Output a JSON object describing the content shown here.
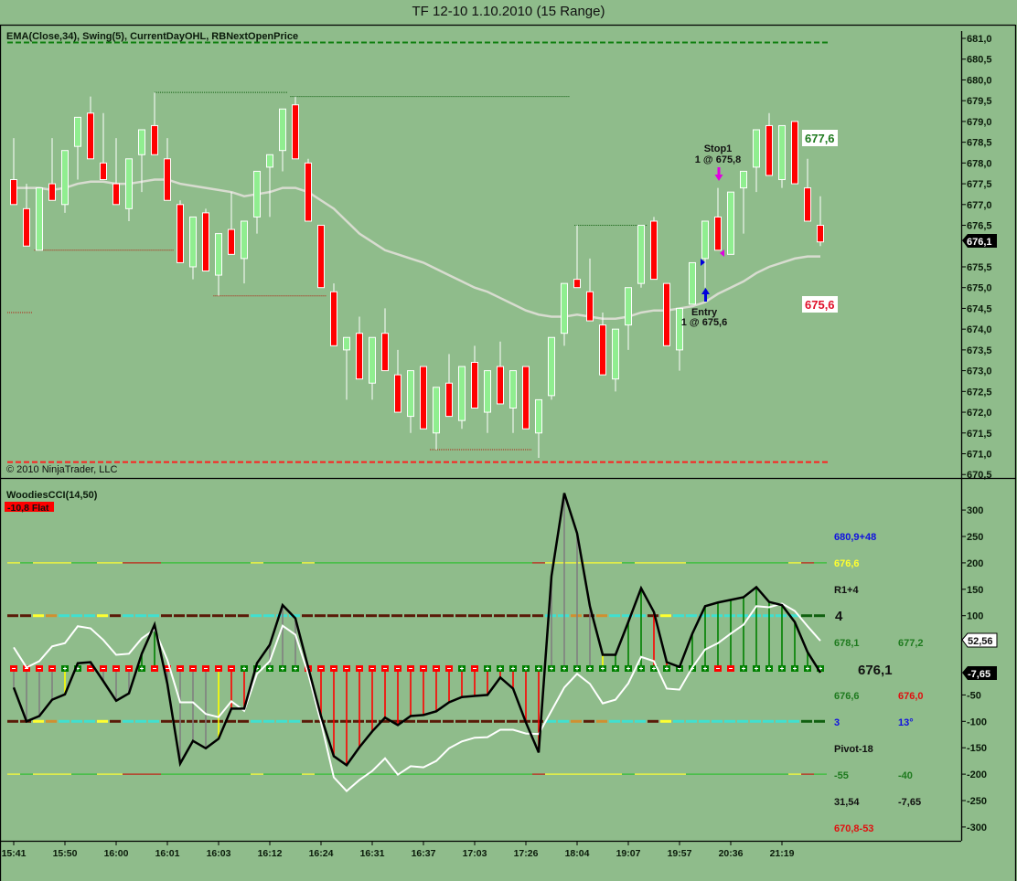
{
  "title": "TF 12-10  1.10.2010 (15 Range)",
  "upper_panel": {
    "indicators_label": "EMA(Close,34), Swing(5), CurrentDayOHL, RBNextOpenPrice",
    "copyright": "© 2010 NinjaTrader, LLC",
    "price_ticks": [
      "681,0",
      "680,5",
      "680,0",
      "679,5",
      "679,0",
      "678,5",
      "678,0",
      "677,5",
      "677,0",
      "676,5",
      "675,5",
      "675,0",
      "674,5",
      "674,0",
      "673,5",
      "673,0",
      "672,5",
      "672,0",
      "671,5",
      "671,0",
      "670,5"
    ],
    "price_tick_values": [
      681.0,
      680.5,
      680.0,
      679.5,
      679.0,
      678.5,
      678.0,
      677.5,
      677.0,
      676.5,
      675.5,
      675.0,
      674.5,
      674.0,
      673.5,
      673.0,
      672.5,
      672.0,
      671.5,
      671.0,
      670.5
    ],
    "current_price_label": "676,1",
    "current_price": 676.1,
    "day_high": 680.9,
    "day_low": 670.8,
    "target_label": "677,6",
    "target_price": 677.6,
    "entry_price_label": "675,6",
    "entry_price": 675.6,
    "stop_annotation": {
      "title": "Stop1",
      "detail": "1 @ 675,8"
    },
    "entry_annotation": {
      "title": "Entry",
      "detail": "1 @ 675,6"
    }
  },
  "lower_panel": {
    "indicator_label": "WoodiesCCI(14,50)",
    "status_badge": "-10,8 Flat",
    "cci_ticks": [
      "300",
      "250",
      "200",
      "150",
      "100",
      "-50",
      "-100",
      "-150",
      "-200",
      "-250",
      "-300"
    ],
    "cci_tick_values": [
      300,
      250,
      200,
      150,
      100,
      -50,
      -100,
      -150,
      -200,
      -250,
      -300
    ],
    "tcci_marker": "52,56",
    "tcci_value": 52.56,
    "cci_marker": "-7,65",
    "cci_value": -7.65,
    "side_info": {
      "r1": "680,9+48",
      "r2": "676,6",
      "r3": "R1+4",
      "r4": "4",
      "r5a": "678,1",
      "r5b": "677,2",
      "r6": "676,1",
      "r7a": "676,6",
      "r7b": "676,0",
      "r8a": "3",
      "r8b": "13°",
      "r9": "Pivot-18",
      "r10a": "-55",
      "r10b": "-40",
      "r11a": "31,54",
      "r11b": "-7,65",
      "r12": "670,8-53"
    }
  },
  "x_axis": {
    "labels": [
      "15:41",
      "15:50",
      "16:00",
      "16:01",
      "16:03",
      "16:12",
      "16:24",
      "16:31",
      "16:37",
      "17:03",
      "17:26",
      "18:04",
      "19:07",
      "19:57",
      "20:36",
      "21:19"
    ],
    "label_bar_index": [
      0,
      4,
      8,
      12,
      16,
      20,
      24,
      28,
      32,
      36,
      40,
      44,
      48,
      52,
      56,
      60
    ]
  },
  "colors": {
    "background": "#8fbc8b",
    "up": "#90ee90",
    "down": "#ff0000",
    "ema": "#d8dcd0",
    "cci": "#000000",
    "tcci": "#ffffff"
  },
  "chart_data": [
    {
      "type": "candlestick",
      "title": "TF 12-10 1.10.2010 (15 Range)",
      "ylim": [
        670.5,
        681.0
      ],
      "ohlc": [
        [
          677.6,
          678.6,
          677.0,
          677.0
        ],
        [
          676.9,
          677.5,
          676.0,
          676.0
        ],
        [
          675.9,
          677.4,
          675.9,
          677.4
        ],
        [
          677.5,
          678.6,
          677.1,
          677.1
        ],
        [
          677.0,
          678.3,
          676.8,
          678.3
        ],
        [
          678.4,
          679.1,
          677.6,
          679.1
        ],
        [
          679.2,
          679.6,
          678.1,
          678.1
        ],
        [
          678.0,
          679.2,
          677.6,
          677.6
        ],
        [
          677.5,
          678.6,
          677.0,
          677.0
        ],
        [
          676.9,
          678.1,
          676.6,
          678.1
        ],
        [
          678.2,
          678.8,
          677.3,
          678.8
        ],
        [
          678.9,
          679.7,
          678.2,
          678.2
        ],
        [
          678.1,
          678.6,
          677.1,
          677.1
        ],
        [
          677.0,
          677.1,
          675.6,
          675.6
        ],
        [
          675.5,
          676.7,
          675.2,
          676.7
        ],
        [
          676.8,
          676.9,
          675.4,
          675.4
        ],
        [
          675.3,
          676.3,
          674.8,
          676.3
        ],
        [
          676.4,
          677.3,
          675.8,
          675.8
        ],
        [
          675.7,
          676.6,
          675.1,
          676.6
        ],
        [
          676.7,
          677.8,
          676.3,
          677.8
        ],
        [
          677.9,
          678.2,
          676.7,
          678.2
        ],
        [
          678.3,
          679.3,
          677.8,
          679.3
        ],
        [
          679.4,
          679.6,
          678.1,
          678.1
        ],
        [
          678.0,
          678.1,
          676.6,
          676.6
        ],
        [
          676.5,
          676.5,
          675.0,
          675.0
        ],
        [
          674.9,
          675.1,
          673.6,
          673.6
        ],
        [
          673.5,
          673.8,
          672.3,
          673.8
        ],
        [
          673.9,
          674.3,
          672.8,
          672.8
        ],
        [
          672.7,
          673.8,
          672.3,
          673.8
        ],
        [
          673.9,
          674.5,
          673.0,
          673.0
        ],
        [
          672.9,
          673.5,
          672.0,
          672.0
        ],
        [
          671.9,
          673.0,
          671.5,
          673.0
        ],
        [
          673.1,
          673.1,
          671.6,
          671.6
        ],
        [
          671.5,
          672.6,
          671.1,
          672.6
        ],
        [
          672.7,
          673.4,
          671.9,
          671.9
        ],
        [
          671.8,
          673.1,
          671.6,
          673.1
        ],
        [
          673.2,
          673.6,
          672.1,
          672.1
        ],
        [
          672.0,
          673.0,
          671.5,
          673.0
        ],
        [
          673.1,
          673.7,
          672.2,
          672.2
        ],
        [
          672.1,
          673.0,
          671.5,
          673.0
        ],
        [
          673.1,
          673.1,
          671.6,
          671.6
        ],
        [
          671.5,
          672.3,
          670.9,
          672.3
        ],
        [
          672.4,
          673.8,
          672.3,
          673.8
        ],
        [
          673.9,
          675.1,
          673.6,
          675.1
        ],
        [
          675.2,
          676.5,
          675.0,
          675.0
        ],
        [
          674.9,
          675.7,
          674.2,
          674.2
        ],
        [
          674.1,
          674.4,
          672.9,
          672.9
        ],
        [
          672.8,
          674.0,
          672.5,
          674.0
        ],
        [
          674.1,
          675.0,
          673.5,
          675.0
        ],
        [
          675.1,
          676.5,
          675.0,
          676.5
        ],
        [
          676.6,
          676.7,
          675.2,
          675.2
        ],
        [
          675.1,
          675.1,
          673.6,
          673.6
        ],
        [
          673.5,
          674.5,
          673.0,
          674.5
        ],
        [
          674.6,
          675.6,
          674.6,
          675.6
        ],
        [
          675.7,
          676.6,
          675.0,
          676.6
        ],
        [
          676.7,
          677.4,
          675.9,
          675.9
        ],
        [
          675.8,
          677.3,
          675.8,
          677.3
        ],
        [
          677.4,
          677.8,
          676.3,
          677.8
        ],
        [
          677.9,
          678.8,
          677.3,
          678.8
        ],
        [
          678.9,
          679.2,
          677.7,
          677.7
        ],
        [
          677.6,
          678.9,
          677.4,
          678.9
        ],
        [
          679.0,
          679.0,
          677.5,
          677.5
        ],
        [
          677.4,
          678.1,
          676.6,
          676.6
        ],
        [
          676.5,
          677.2,
          676.0,
          676.1
        ]
      ],
      "ema34": [
        677.4,
        677.4,
        677.4,
        677.35,
        677.4,
        677.5,
        677.55,
        677.55,
        677.5,
        677.5,
        677.55,
        677.6,
        677.6,
        677.5,
        677.45,
        677.4,
        677.35,
        677.3,
        677.2,
        677.25,
        677.3,
        677.4,
        677.4,
        677.3,
        677.1,
        676.9,
        676.6,
        676.3,
        676.1,
        675.9,
        675.8,
        675.7,
        675.6,
        675.45,
        675.3,
        675.15,
        675.0,
        674.9,
        674.75,
        674.6,
        674.45,
        674.35,
        674.3,
        674.3,
        674.35,
        674.3,
        674.25,
        674.25,
        674.3,
        674.4,
        674.45,
        674.45,
        674.5,
        674.55,
        674.65,
        674.85,
        675.0,
        675.15,
        675.35,
        675.5,
        675.6,
        675.7,
        675.75,
        675.75
      ],
      "swing_highs": [
        {
          "price": 679.7,
          "from": 11,
          "to": 21.4
        },
        {
          "price": 679.6,
          "from": 21.6,
          "to": 43.4
        },
        {
          "price": 676.5,
          "from": 43.8,
          "to": 49.5
        }
      ],
      "swing_lows": [
        {
          "price": 675.9,
          "from": 1.6,
          "to": 12.5
        },
        {
          "price": 674.8,
          "from": 15.6,
          "to": 24.4
        },
        {
          "price": 674.4,
          "from": -0.5,
          "to": 1.5
        },
        {
          "price": 671.1,
          "from": 32.5,
          "to": 40.5
        }
      ]
    },
    {
      "type": "line",
      "title": "WoodiesCCI(14,50)",
      "ylim": [
        -320,
        340
      ],
      "cci": [
        -36,
        -100,
        -90,
        -59,
        -49,
        10,
        12,
        -24,
        -61,
        -47,
        28,
        83,
        -29,
        -180,
        -137,
        -151,
        -133,
        -76,
        -76,
        10,
        45,
        120,
        95,
        2,
        -90,
        -166,
        -183,
        -149,
        -119,
        -93,
        -107,
        -90,
        -88,
        -81,
        -64,
        -54,
        -52,
        -50,
        -17,
        -38,
        -102,
        -159,
        175,
        332,
        256,
        118,
        26,
        26,
        88,
        152,
        107,
        12,
        3,
        66,
        118,
        125,
        130,
        135,
        154,
        126,
        120,
        88,
        31,
        -7.65
      ],
      "tcci": [
        40,
        2,
        14,
        42,
        48,
        80,
        76,
        54,
        26,
        28,
        57,
        74,
        16,
        -64,
        -64,
        -86,
        -92,
        -62,
        -80,
        -10,
        14,
        81,
        64,
        -10,
        -102,
        -206,
        -232,
        -211,
        -194,
        -170,
        -201,
        -185,
        -187,
        -175,
        -151,
        -138,
        -131,
        -130,
        -116,
        -116,
        -123,
        -124,
        -80,
        -36,
        -10,
        -29,
        -66,
        -59,
        -28,
        22,
        14,
        -38,
        -40,
        2,
        36,
        48,
        66,
        83,
        118,
        116,
        123,
        109,
        80,
        52.56
      ],
      "histogram_colors": "GGGGYGGGGGNNGGGGYRRGGGGRRRRRRRRRRRRRRRRRRRGGGGYNNNRRNNNNNNNNNNNR",
      "zero_markers": "----++----+-------+++++------------+-++++++++++++++++++--++++++++---",
      "line100_colors": "BBYOCCCYBCCCBBBBBBBCCCCBBBBBBBBBBBBBBBBBBBCCOBOCCCBYCCCCCCCCCCDD",
      "line200_colors": "YGYYYGGYYRRRGGGGGGGYGGGYGGGGGGGGGGGGGGGGGRYYYYYYGYYYYGGGGGGGGYRG"
    }
  ]
}
